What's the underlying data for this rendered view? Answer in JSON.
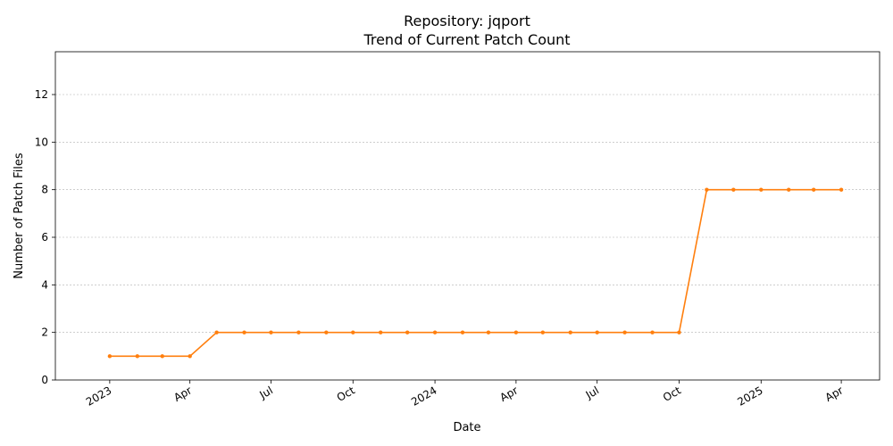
{
  "chart_data": {
    "type": "line",
    "title": "Repository: jqport",
    "subtitle": "Trend of Current Patch Count",
    "xlabel": "Date",
    "ylabel": "Number of Patch Files",
    "ylim": [
      0,
      13.8
    ],
    "xlim": [
      "2022-11-01",
      "2025-05-14"
    ],
    "grid": "horizontal-dashed",
    "color": "#ff7f0e",
    "y_ticks": [
      0,
      2,
      4,
      6,
      8,
      10,
      12
    ],
    "x_ticks": [
      {
        "date": "2023-01-01",
        "label": "2023"
      },
      {
        "date": "2023-04-01",
        "label": "Apr"
      },
      {
        "date": "2023-07-01",
        "label": "Jul"
      },
      {
        "date": "2023-10-01",
        "label": "Oct"
      },
      {
        "date": "2024-01-01",
        "label": "2024"
      },
      {
        "date": "2024-04-01",
        "label": "Apr"
      },
      {
        "date": "2024-07-01",
        "label": "Jul"
      },
      {
        "date": "2024-10-01",
        "label": "Oct"
      },
      {
        "date": "2025-01-01",
        "label": "2025"
      },
      {
        "date": "2025-04-01",
        "label": "Apr"
      }
    ],
    "points": [
      {
        "x": "2023-01-01",
        "y": 1
      },
      {
        "x": "2023-02-01",
        "y": 1
      },
      {
        "x": "2023-03-01",
        "y": 1
      },
      {
        "x": "2023-04-01",
        "y": 1
      },
      {
        "x": "2023-05-01",
        "y": 2
      },
      {
        "x": "2023-06-01",
        "y": 2
      },
      {
        "x": "2023-07-01",
        "y": 2
      },
      {
        "x": "2023-08-01",
        "y": 2
      },
      {
        "x": "2023-09-01",
        "y": 2
      },
      {
        "x": "2023-10-01",
        "y": 2
      },
      {
        "x": "2023-11-01",
        "y": 2
      },
      {
        "x": "2023-12-01",
        "y": 2
      },
      {
        "x": "2024-01-01",
        "y": 2
      },
      {
        "x": "2024-02-01",
        "y": 2
      },
      {
        "x": "2024-03-01",
        "y": 2
      },
      {
        "x": "2024-04-01",
        "y": 2
      },
      {
        "x": "2024-05-01",
        "y": 2
      },
      {
        "x": "2024-06-01",
        "y": 2
      },
      {
        "x": "2024-07-01",
        "y": 2
      },
      {
        "x": "2024-08-01",
        "y": 2
      },
      {
        "x": "2024-09-01",
        "y": 2
      },
      {
        "x": "2024-10-01",
        "y": 2
      },
      {
        "x": "2024-11-01",
        "y": 8
      },
      {
        "x": "2024-12-01",
        "y": 8
      },
      {
        "x": "2025-01-01",
        "y": 8
      },
      {
        "x": "2025-02-01",
        "y": 8
      },
      {
        "x": "2025-03-01",
        "y": 8
      },
      {
        "x": "2025-04-01",
        "y": 8
      }
    ]
  }
}
